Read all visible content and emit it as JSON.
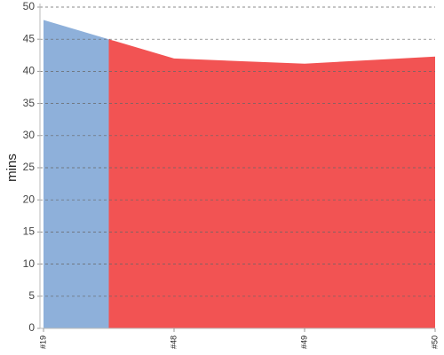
{
  "chart_data": {
    "type": "area",
    "y_label": "mins",
    "categories": [
      "#19",
      "#48",
      "#49",
      "#50"
    ],
    "values": [
      48,
      42,
      41.2,
      42.3
    ],
    "colors": [
      "#8eb0da",
      "#f25353",
      "#f25353",
      "#f25353"
    ],
    "ylim": [
      0,
      50
    ],
    "yticks": [
      0,
      5,
      10,
      15,
      20,
      25,
      30,
      35,
      40,
      45,
      50
    ],
    "grid": true
  }
}
